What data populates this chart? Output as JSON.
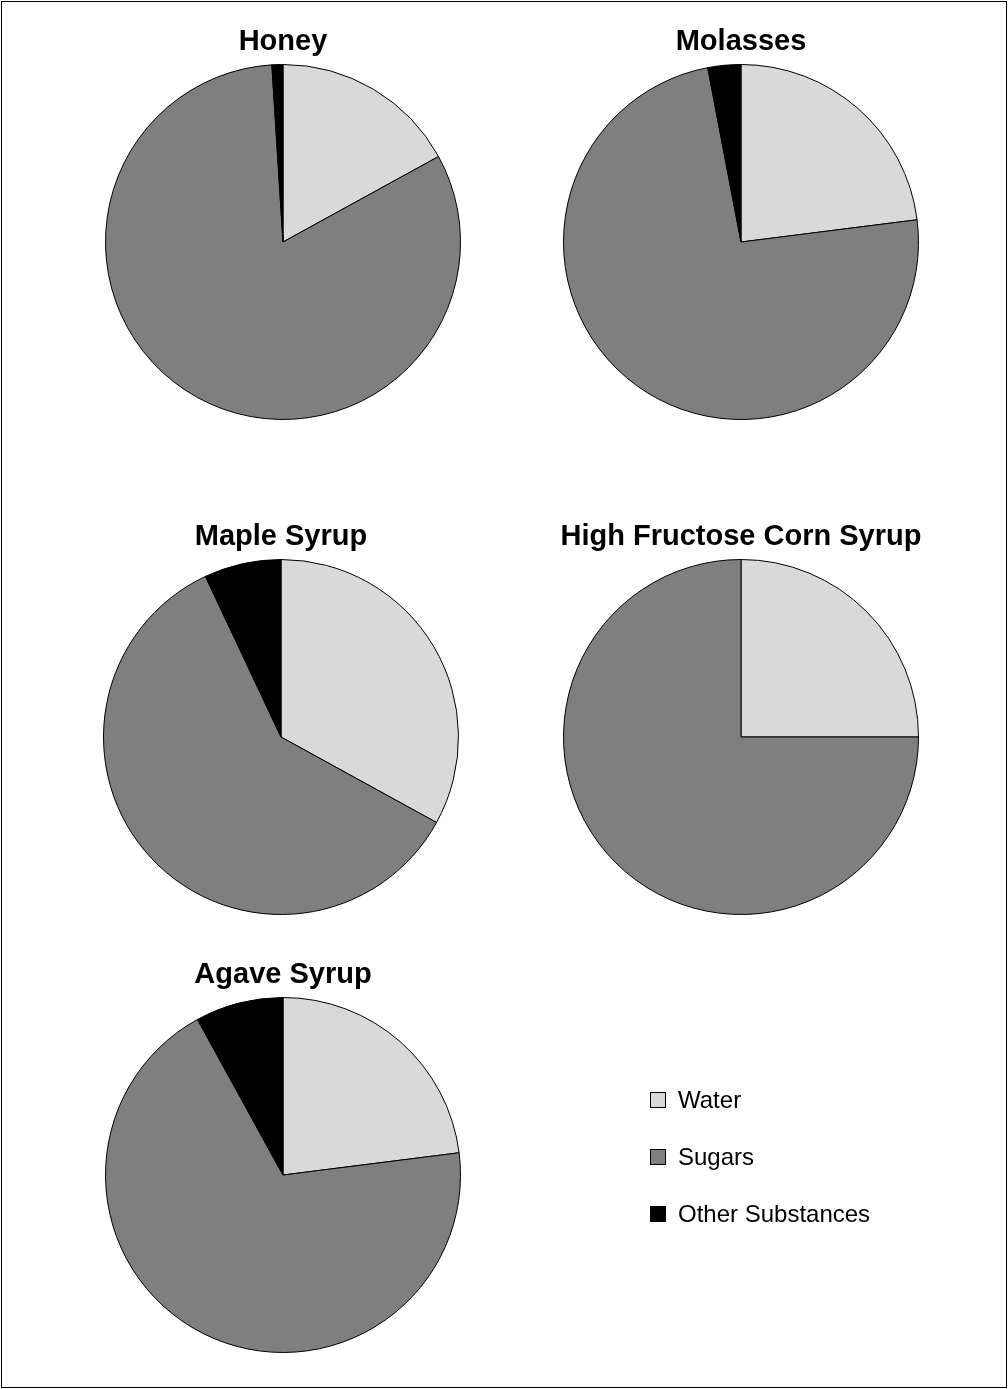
{
  "chart_data": [
    {
      "type": "pie",
      "title": "Honey",
      "categories": [
        null,
        null,
        null
      ],
      "values": [
        17,
        82,
        1
      ],
      "colors": [
        "#d9d9d9",
        "#7f7f7f",
        "#000000"
      ]
    },
    {
      "type": "pie",
      "title": "Molasses",
      "categories": [
        null,
        null,
        null
      ],
      "values": [
        23,
        74,
        3
      ],
      "colors": [
        "#d9d9d9",
        "#7f7f7f",
        "#000000"
      ]
    },
    {
      "type": "pie",
      "title": "Maple Syrup",
      "categories": [
        null,
        null,
        null
      ],
      "values": [
        33,
        60,
        7
      ],
      "colors": [
        "#d9d9d9",
        "#7f7f7f",
        "#000000"
      ]
    },
    {
      "type": "pie",
      "title": "High Fructose Corn Syrup",
      "categories": [
        null,
        null,
        null
      ],
      "values": [
        25,
        75,
        0
      ],
      "colors": [
        "#d9d9d9",
        "#7f7f7f",
        "#000000"
      ]
    },
    {
      "type": "pie",
      "title": "Agave Syrup",
      "categories": [
        "Water",
        "Sugars",
        "Other Substances"
      ],
      "values": [
        23,
        69,
        8
      ],
      "colors": [
        "#d9d9d9",
        "#7f7f7f",
        "#000000"
      ],
      "legend": "right"
    }
  ]
}
